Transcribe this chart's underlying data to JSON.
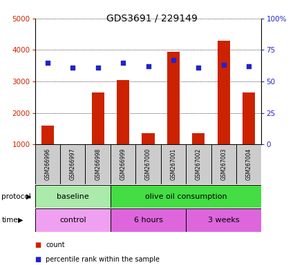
{
  "title": "GDS3691 / 229149",
  "samples": [
    "GSM266996",
    "GSM266997",
    "GSM266998",
    "GSM266999",
    "GSM267000",
    "GSM267001",
    "GSM267002",
    "GSM267003",
    "GSM267004"
  ],
  "counts": [
    1600,
    1000,
    2650,
    3050,
    1350,
    3950,
    1350,
    4300,
    2650
  ],
  "percentile_ranks": [
    65,
    61,
    61,
    65,
    62,
    67,
    61,
    63,
    62
  ],
  "protocol_groups": [
    {
      "label": "baseline",
      "start": 0,
      "end": 3,
      "color": "#aaeaaa"
    },
    {
      "label": "olive oil consumption",
      "start": 3,
      "end": 9,
      "color": "#44dd44"
    }
  ],
  "time_groups": [
    {
      "label": "control",
      "start": 0,
      "end": 3,
      "color": "#f0a0f0"
    },
    {
      "label": "6 hours",
      "start": 3,
      "end": 6,
      "color": "#dd66dd"
    },
    {
      "label": "3 weeks",
      "start": 6,
      "end": 9,
      "color": "#dd66dd"
    }
  ],
  "bar_color": "#cc2200",
  "dot_color": "#2222cc",
  "left_ylim": [
    1000,
    5000
  ],
  "right_ylim": [
    0,
    100
  ],
  "left_yticks": [
    1000,
    2000,
    3000,
    4000,
    5000
  ],
  "right_yticks": [
    0,
    25,
    50,
    75,
    100
  ],
  "right_yticklabels": [
    "0",
    "25",
    "50",
    "75",
    "100%"
  ],
  "label_color_left": "#cc2200",
  "label_color_right": "#2222cc",
  "sample_bg": "#cccccc",
  "legend_items": [
    {
      "color": "#cc2200",
      "label": "count"
    },
    {
      "color": "#2222cc",
      "label": "percentile rank within the sample"
    }
  ]
}
